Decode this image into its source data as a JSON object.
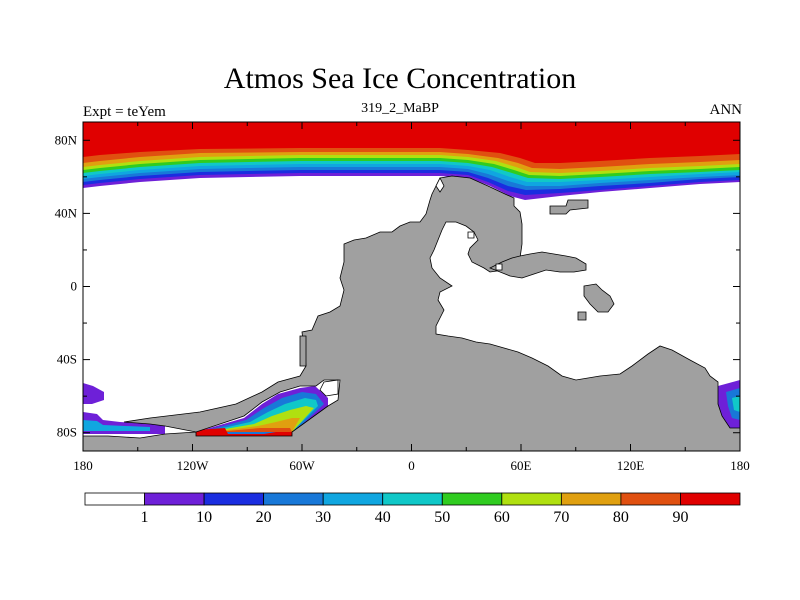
{
  "title": "Atmos Sea Ice Concentration",
  "subtitle": "319_2_MaBP",
  "left_string": "Expt = teYem",
  "right_string": "ANN",
  "map": {
    "projection": "cylindrical equidistant",
    "lon_range": [
      -180,
      180
    ],
    "lat_range": [
      -90,
      90
    ],
    "land_color": "#a0a0a0",
    "ocean_color": "#ffffff"
  },
  "axes": {
    "x_ticks": [
      {
        "value": -180,
        "label": "180"
      },
      {
        "value": -120,
        "label": "120W"
      },
      {
        "value": -60,
        "label": "60W"
      },
      {
        "value": 0,
        "label": "0"
      },
      {
        "value": 60,
        "label": "60E"
      },
      {
        "value": 120,
        "label": "120E"
      },
      {
        "value": 180,
        "label": "180"
      }
    ],
    "y_ticks": [
      {
        "value": 80,
        "label": "80N"
      },
      {
        "value": 40,
        "label": "40N"
      },
      {
        "value": 0,
        "label": "0"
      },
      {
        "value": -40,
        "label": "40S"
      },
      {
        "value": -80,
        "label": "80S"
      }
    ]
  },
  "chart_data": {
    "type": "heatmap",
    "variable": "sea ice concentration",
    "contour_levels": [
      1,
      10,
      20,
      30,
      40,
      50,
      60,
      70,
      80,
      90
    ],
    "colors": [
      "#ffffff",
      "#6e20d8",
      "#1a2de0",
      "#1878d8",
      "#10a6e0",
      "#10c8c8",
      "#30cc20",
      "#b0e010",
      "#e0a010",
      "#e05010",
      "#e00000"
    ]
  }
}
